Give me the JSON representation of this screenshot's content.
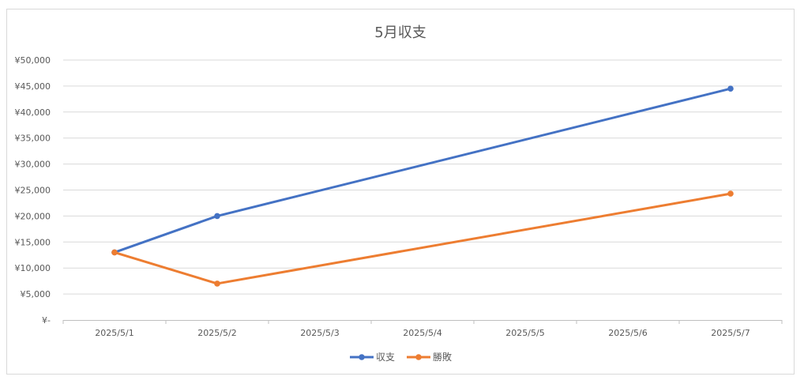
{
  "chart_data": {
    "type": "line",
    "title": "5月収支",
    "xlabel": "",
    "ylabel": "",
    "categories": [
      "2025/5/1",
      "2025/5/2",
      "2025/5/3",
      "2025/5/4",
      "2025/5/5",
      "2025/5/6",
      "2025/5/7"
    ],
    "x": [
      "2025/5/1",
      "2025/5/2",
      "2025/5/7"
    ],
    "ylim": [
      0,
      50000
    ],
    "yticks": [
      0,
      5000,
      10000,
      15000,
      20000,
      25000,
      30000,
      35000,
      40000,
      45000,
      50000
    ],
    "ytick_labels": [
      "¥-",
      "¥5,000",
      "¥10,000",
      "¥15,000",
      "¥20,000",
      "¥25,000",
      "¥30,000",
      "¥35,000",
      "¥40,000",
      "¥45,000",
      "¥50,000"
    ],
    "grid": true,
    "legend": "bottom",
    "series": [
      {
        "name": "収支",
        "color": "#4472c4",
        "points": [
          {
            "x": "2025/5/1",
            "y": 13000
          },
          {
            "x": "2025/5/2",
            "y": 20000
          },
          {
            "x": "2025/5/7",
            "y": 44500
          }
        ]
      },
      {
        "name": "勝敗",
        "color": "#ed7d31",
        "points": [
          {
            "x": "2025/5/1",
            "y": 13000
          },
          {
            "x": "2025/5/2",
            "y": 7000
          },
          {
            "x": "2025/5/7",
            "y": 24300
          }
        ]
      }
    ]
  }
}
